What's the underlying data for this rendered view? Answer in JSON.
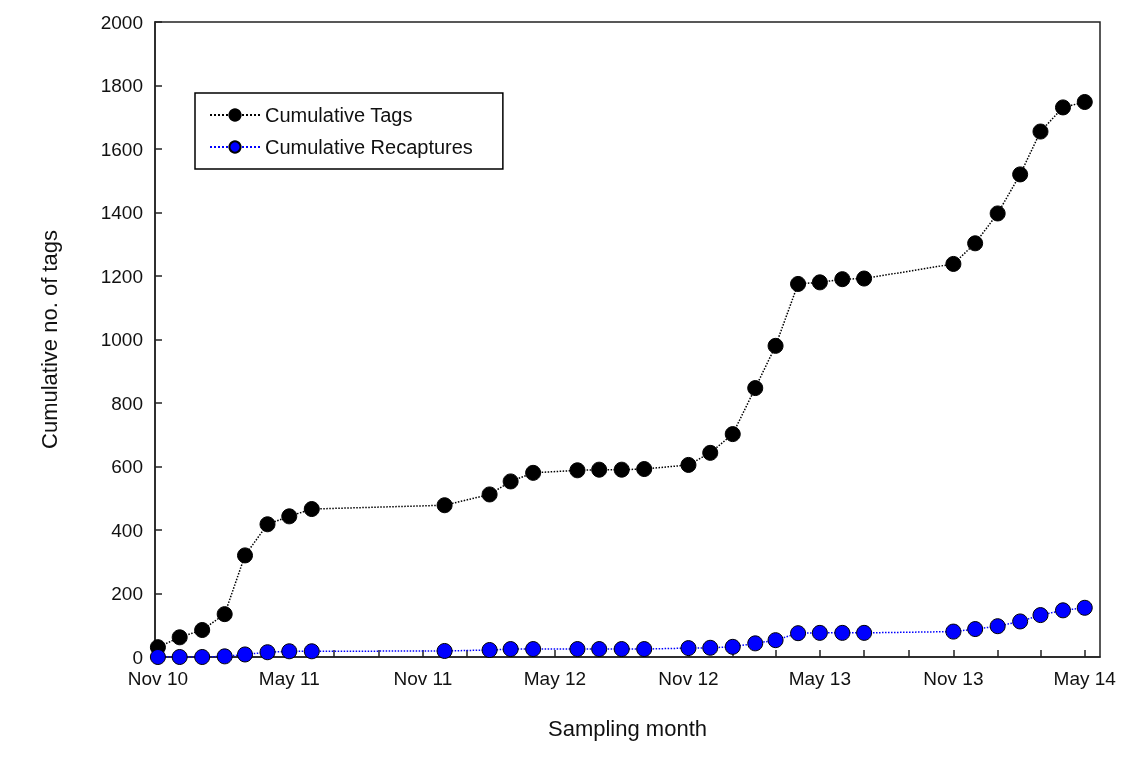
{
  "chart_data": {
    "type": "line",
    "xlabel": "Sampling month",
    "ylabel": "Cumulative no. of tags",
    "x": [
      "2010-11",
      "2010-12",
      "2011-01",
      "2011-02",
      "2011-03",
      "2011-04",
      "2011-05",
      "2011-06",
      "2011-12",
      "2012-02",
      "2012-03",
      "2012-04",
      "2012-06",
      "2012-07",
      "2012-08",
      "2012-09",
      "2012-11",
      "2012-12",
      "2013-01",
      "2013-02",
      "2013-03",
      "2013-04",
      "2013-05",
      "2013-06",
      "2013-07",
      "2013-11",
      "2013-12",
      "2014-01",
      "2014-02",
      "2014-03",
      "2014-04",
      "2014-05"
    ],
    "series": [
      {
        "name": "Cumulative Tags",
        "color": "#000000",
        "values": [
          31,
          62,
          85,
          135,
          320,
          418,
          443,
          466,
          478,
          512,
          553,
          580,
          588,
          590,
          590,
          592,
          605,
          643,
          702,
          847,
          980,
          1175,
          1180,
          1190,
          1192,
          1238,
          1303,
          1397,
          1520,
          1655,
          1731,
          1748
        ]
      },
      {
        "name": "Cumulative Recaptures",
        "color": "#0000ff",
        "values": [
          0,
          0,
          0,
          2,
          8,
          15,
          18,
          18,
          19,
          22,
          25,
          25,
          25,
          25,
          25,
          25,
          28,
          29,
          32,
          43,
          53,
          75,
          76,
          76,
          76,
          80,
          88,
          97,
          112,
          132,
          147,
          155
        ]
      }
    ],
    "xlim": [
      "2010-10-28",
      "2014-05-22"
    ],
    "xticks": [
      {
        "value": "2010-11",
        "label": "Nov 10"
      },
      {
        "value": "2011-01",
        "label": null
      },
      {
        "value": "2011-03",
        "label": null
      },
      {
        "value": "2011-05",
        "label": "May 11"
      },
      {
        "value": "2011-07",
        "label": null
      },
      {
        "value": "2011-09",
        "label": null
      },
      {
        "value": "2011-11",
        "label": "Nov 11"
      },
      {
        "value": "2012-01",
        "label": null
      },
      {
        "value": "2012-03",
        "label": null
      },
      {
        "value": "2012-05",
        "label": "May 12"
      },
      {
        "value": "2012-07",
        "label": null
      },
      {
        "value": "2012-09",
        "label": null
      },
      {
        "value": "2012-11",
        "label": "Nov 12"
      },
      {
        "value": "2013-01",
        "label": null
      },
      {
        "value": "2013-03",
        "label": null
      },
      {
        "value": "2013-05",
        "label": "May 13"
      },
      {
        "value": "2013-07",
        "label": null
      },
      {
        "value": "2013-09",
        "label": null
      },
      {
        "value": "2013-11",
        "label": "Nov 13"
      },
      {
        "value": "2014-01",
        "label": null
      },
      {
        "value": "2014-03",
        "label": null
      },
      {
        "value": "2014-05",
        "label": "May 14"
      }
    ],
    "ylim": [
      0,
      2000
    ],
    "yticks": [
      0,
      200,
      400,
      600,
      800,
      1000,
      1200,
      1400,
      1600,
      1800,
      2000
    ],
    "grid": false,
    "legend": "top left",
    "marker": "circle",
    "line_style": "dotted"
  }
}
